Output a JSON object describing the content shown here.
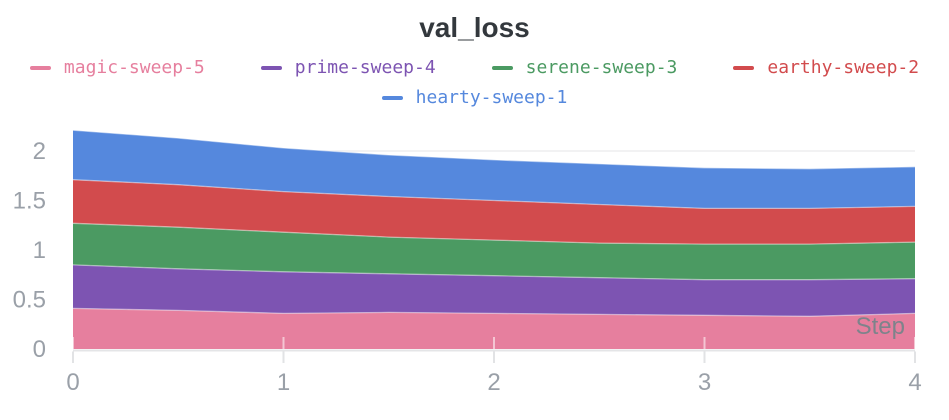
{
  "chart_data": {
    "type": "area",
    "stacked": true,
    "title": "val_loss",
    "xlabel": "Step",
    "ylabel": "",
    "xlim": [
      0,
      4
    ],
    "ylim": [
      0,
      2.27
    ],
    "xticks": [
      0,
      1,
      2,
      3,
      4
    ],
    "yticks": [
      0,
      0.5,
      1,
      1.5,
      2
    ],
    "grid": true,
    "legend_position": "top-center-two-rows",
    "x": [
      0,
      0.5,
      1,
      1.5,
      2,
      2.5,
      3,
      3.5,
      4
    ],
    "series": [
      {
        "name": "magic-sweep-5",
        "color": "#E67F9E",
        "values": [
          0.41,
          0.39,
          0.36,
          0.37,
          0.36,
          0.35,
          0.34,
          0.33,
          0.36
        ]
      },
      {
        "name": "prime-sweep-4",
        "color": "#7D54B2",
        "values": [
          0.44,
          0.42,
          0.42,
          0.39,
          0.38,
          0.37,
          0.36,
          0.37,
          0.35
        ]
      },
      {
        "name": "serene-sweep-3",
        "color": "#4B9A62",
        "values": [
          0.42,
          0.42,
          0.4,
          0.37,
          0.36,
          0.35,
          0.36,
          0.36,
          0.37
        ]
      },
      {
        "name": "earthy-sweep-2",
        "color": "#D24B4D",
        "values": [
          0.44,
          0.43,
          0.41,
          0.41,
          0.4,
          0.39,
          0.36,
          0.36,
          0.36
        ]
      },
      {
        "name": "hearty-sweep-1",
        "color": "#5588DD",
        "values": [
          0.5,
          0.47,
          0.44,
          0.42,
          0.41,
          0.41,
          0.41,
          0.4,
          0.4
        ]
      }
    ],
    "stacked_totals": [
      2.21,
      2.13,
      2.03,
      1.96,
      1.91,
      1.87,
      1.83,
      1.82,
      1.84
    ]
  },
  "style_colors": {
    "tick_label": "#9aa0a8",
    "step_label": "#7e838b",
    "gridline": "#ededef",
    "axis_line": "#e4e5e7",
    "title_text": "#33383d"
  }
}
